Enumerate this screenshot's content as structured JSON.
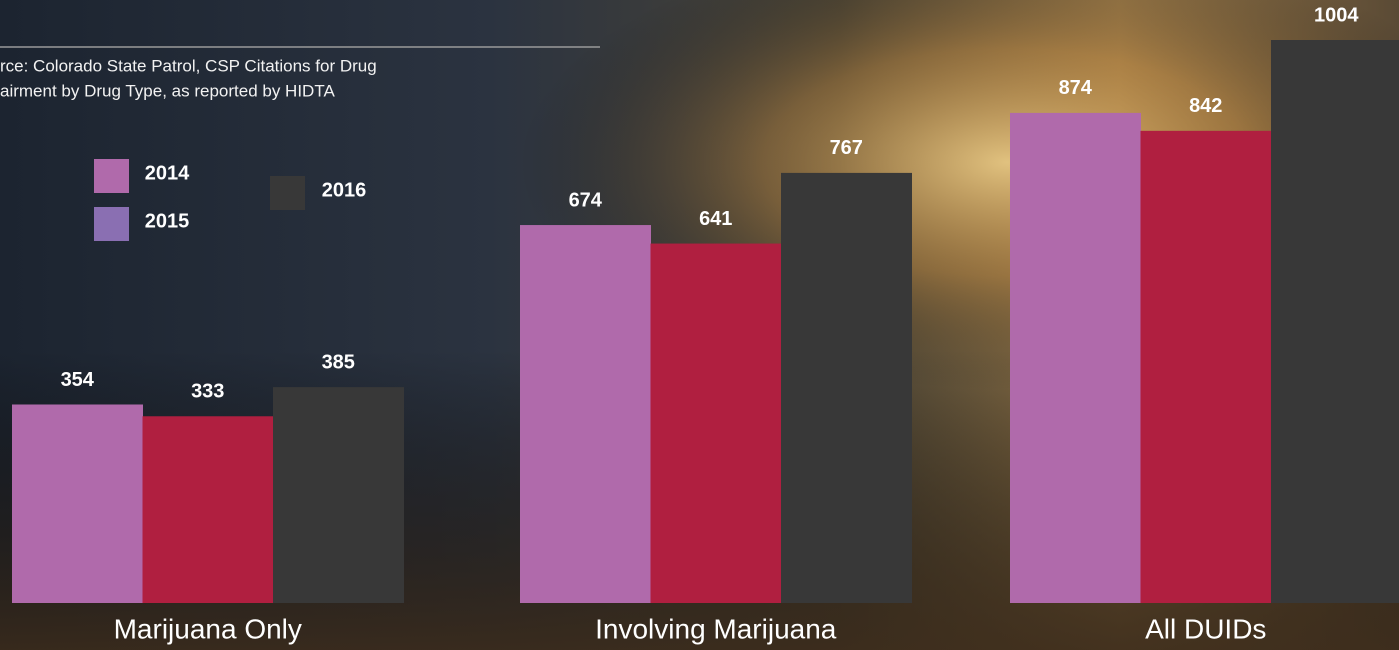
{
  "chart_data": {
    "type": "bar",
    "source": [
      "rce: Colorado State Patrol, CSP Citations for Drug",
      "airment by Drug Type, as reported by HIDTA"
    ],
    "categories": [
      "Marijuana Only",
      "Involving Marijuana",
      "All DUIDs"
    ],
    "series": [
      {
        "name": "2014",
        "color": "#b06aab",
        "legend_color": "#b06aab",
        "values": [
          354,
          674,
          874
        ]
      },
      {
        "name": "2015",
        "color": "#b01f40",
        "legend_color": "#8a6fb2",
        "values": [
          333,
          641,
          842
        ]
      },
      {
        "name": "2016",
        "color": "#383838",
        "legend_color": "#383838",
        "values": [
          385,
          767,
          1004
        ]
      }
    ]
  }
}
